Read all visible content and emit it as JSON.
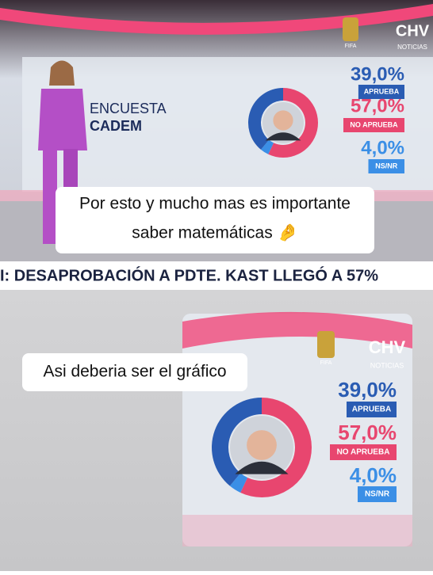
{
  "chart_data": [
    {
      "type": "pie",
      "title": "ENCUESTA",
      "subtitle": "CADEM",
      "categories": [
        "APRUEBA",
        "NO APRUEBA",
        "NS/NR"
      ],
      "values": [
        39,
        57,
        4
      ],
      "value_labels": [
        "39,0%",
        "57,0%",
        "4,0%"
      ],
      "colors": [
        "#2a5cb3",
        "#e8466f",
        "#3b8fe6"
      ]
    },
    {
      "type": "pie",
      "categories": [
        "APRUEBA",
        "NO APRUEBA",
        "NS/NR"
      ],
      "values": [
        39,
        57,
        4
      ],
      "value_labels": [
        "39,0%",
        "57,0%",
        "4,0%"
      ],
      "colors": [
        "#2a5cb3",
        "#e8466f",
        "#3b8fe6"
      ]
    }
  ],
  "captions": [
    [
      "Por esto y mucho mas es importante",
      "saber matemáticas 🤌"
    ],
    [
      "Asi deberia ser el gráfico"
    ]
  ],
  "ticker": "I: DESAPROBACIÓN A PDTE. KAST LLEGÓ A 57%",
  "logo": {
    "brand": "CHV",
    "sub": "NOTICIAS",
    "fifa": "FIFA"
  }
}
